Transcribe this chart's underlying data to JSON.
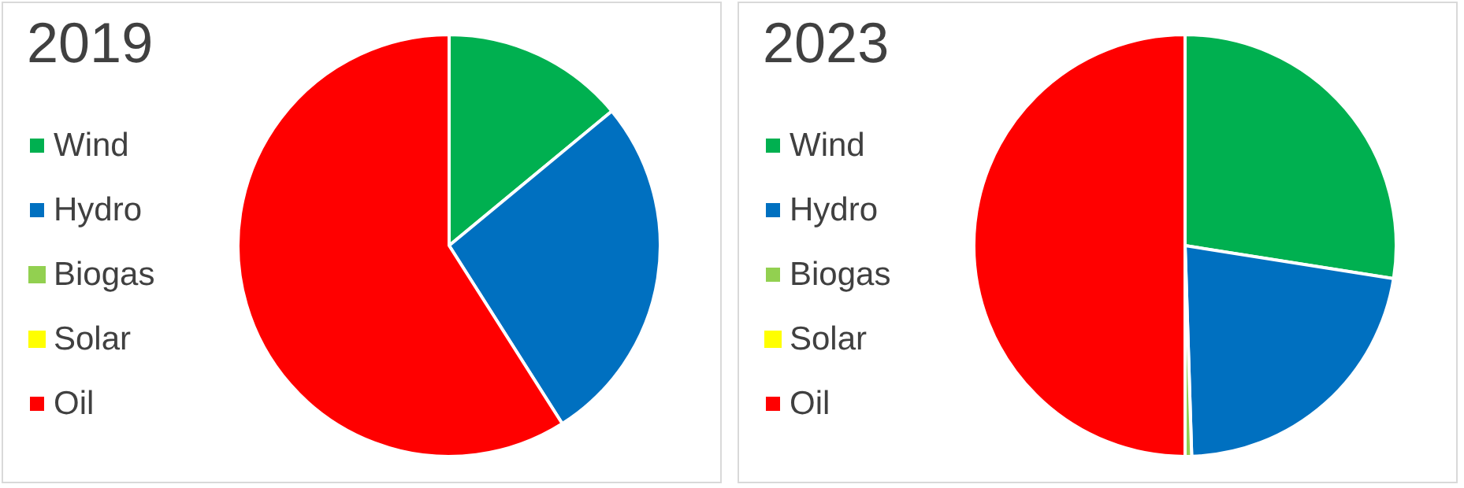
{
  "chart_data": [
    {
      "type": "pie",
      "title": "2019",
      "categories": [
        "Wind",
        "Hydro",
        "Biogas",
        "Solar",
        "Oil"
      ],
      "values": [
        14,
        27,
        0,
        0,
        59
      ],
      "colors": [
        "#00b050",
        "#0070c0",
        "#92d050",
        "#ffff00",
        "#ff0000"
      ],
      "legend": "left"
    },
    {
      "type": "pie",
      "title": "2023",
      "categories": [
        "Wind",
        "Hydro",
        "Biogas",
        "Solar",
        "Oil"
      ],
      "values": [
        27.5,
        22,
        0.5,
        0,
        50
      ],
      "colors": [
        "#00b050",
        "#0070c0",
        "#92d050",
        "#ffff00",
        "#ff0000"
      ],
      "legend": "left"
    }
  ]
}
